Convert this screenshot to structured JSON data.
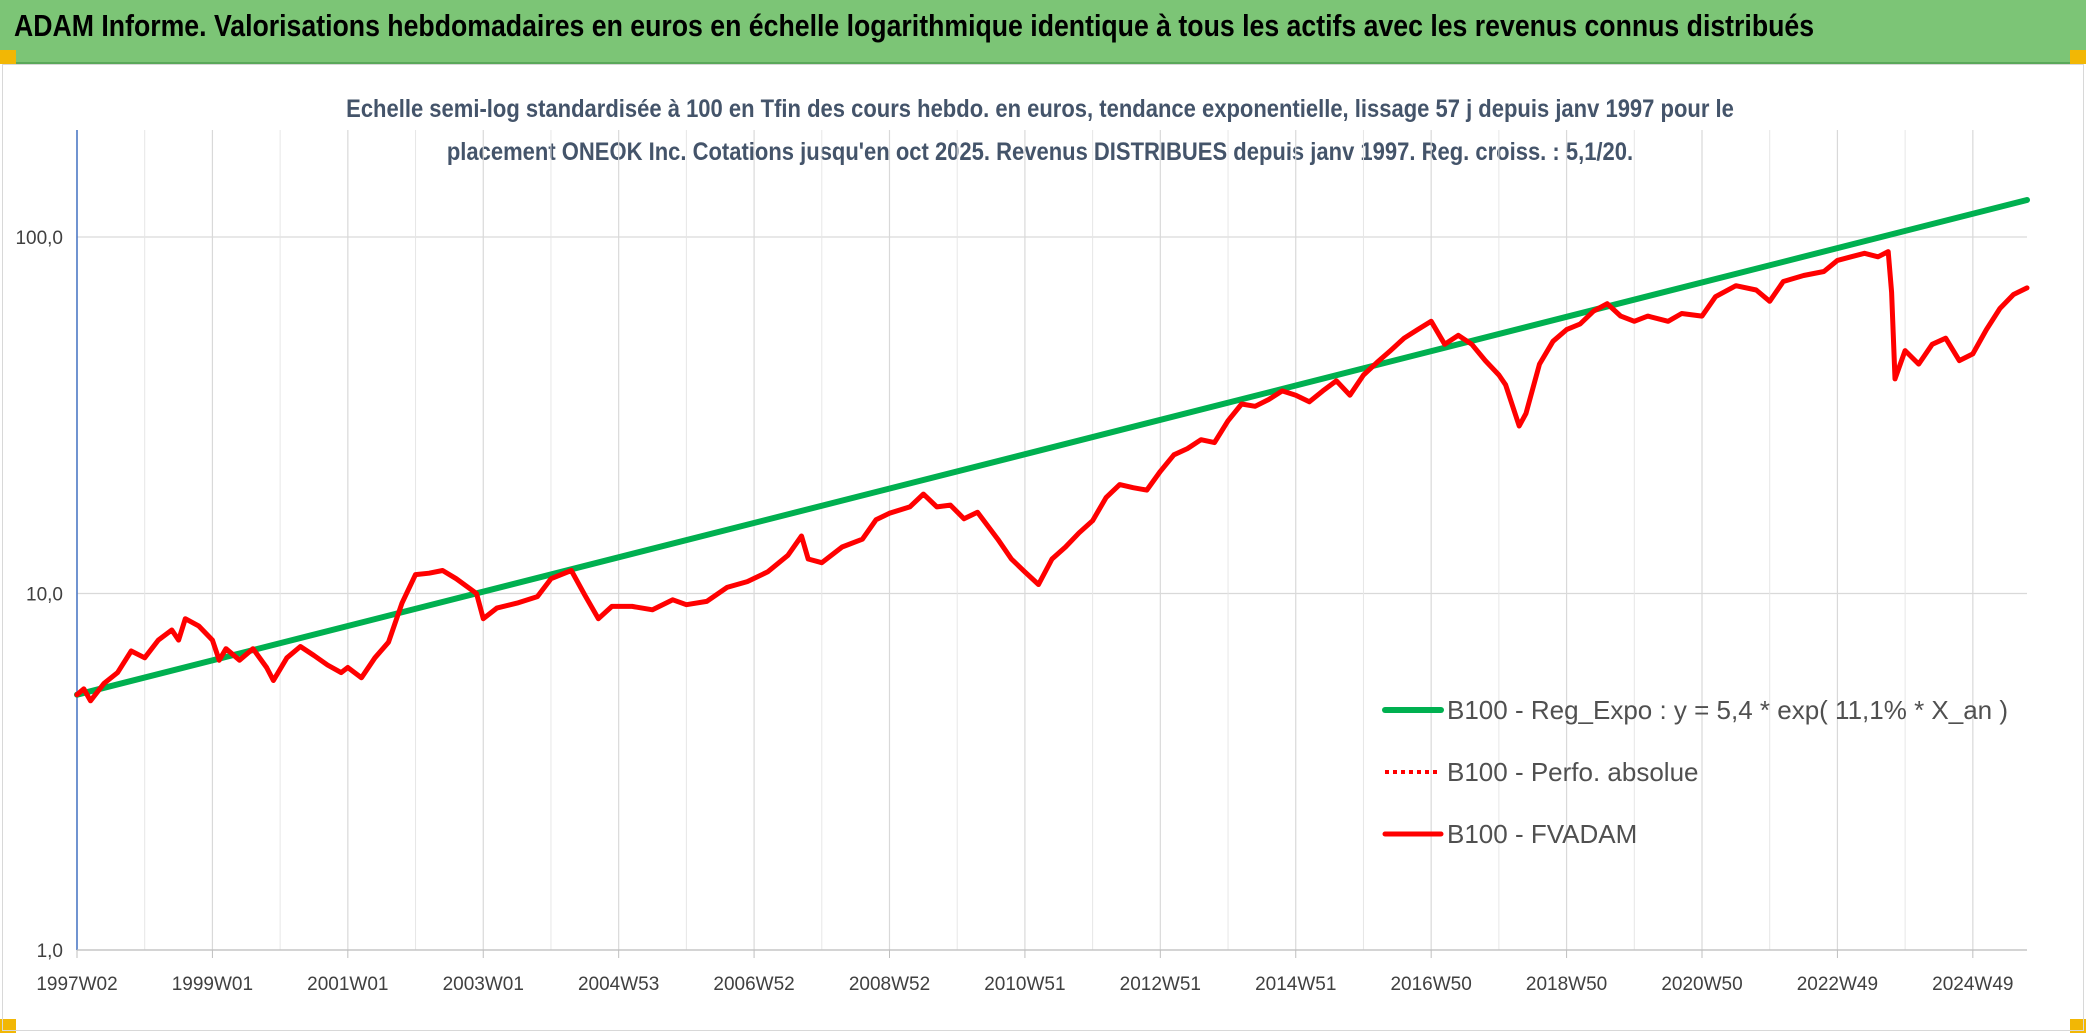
{
  "header": {
    "title": "ADAM Informe. Valorisations hebdomadaires en euros en échelle logarithmique identique à tous les actifs avec les revenus connus distribués"
  },
  "colors": {
    "banner": "#7cc576",
    "accent_corner": "#f2b705",
    "regression_line": "#00b050",
    "fvadam_line": "#ff0000",
    "perfo_line": "#ff0000",
    "subtitle_text": "#44546a"
  },
  "chart_data": {
    "type": "line",
    "title_lines": [
      "Echelle semi-log standardisée à 100 en Tfin des cours hebdo. en euros, tendance exponentielle, lissage 57 j depuis janv 1997 pour le",
      "placement ONEOK Inc. Cotations jusqu'en oct 2025. Revenus DISTRIBUES depuis janv 1997. Reg. croiss. : 5,1/20."
    ],
    "y_scale": "log",
    "ylim": [
      1,
      180
    ],
    "y_ticks": [
      {
        "value": 1,
        "label": "1,0"
      },
      {
        "value": 10,
        "label": "10,0"
      },
      {
        "value": 100,
        "label": "100,0"
      }
    ],
    "xlim": [
      1997.0,
      2025.8
    ],
    "x_ticks": [
      {
        "value": 1997.0,
        "label": "1997W02"
      },
      {
        "value": 1999.0,
        "label": "1999W01"
      },
      {
        "value": 2001.0,
        "label": "2001W01"
      },
      {
        "value": 2003.0,
        "label": "2003W01"
      },
      {
        "value": 2005.0,
        "label": "2004W53"
      },
      {
        "value": 2007.0,
        "label": "2006W52"
      },
      {
        "value": 2009.0,
        "label": "2008W52"
      },
      {
        "value": 2011.0,
        "label": "2010W51"
      },
      {
        "value": 2013.0,
        "label": "2012W51"
      },
      {
        "value": 2015.0,
        "label": "2014W51"
      },
      {
        "value": 2017.0,
        "label": "2016W50"
      },
      {
        "value": 2019.0,
        "label": "2018W50"
      },
      {
        "value": 2021.0,
        "label": "2020W50"
      },
      {
        "value": 2023.0,
        "label": "2022W49"
      },
      {
        "value": 2025.0,
        "label": "2024W49"
      }
    ],
    "grid": true,
    "legend_position": "right-middle",
    "series": [
      {
        "name": "B100 - Reg_Expo : y = 5,4 * exp( 11,1% *  X_an )",
        "style": "solid-thick",
        "color": "#00b050",
        "points": [
          [
            1997.0,
            5.2
          ],
          [
            2025.8,
            127
          ]
        ]
      },
      {
        "name": "B100 - Perfo. absolue",
        "style": "dotted",
        "color": "#ff0000",
        "points": []
      },
      {
        "name": "B100 - FVADAM",
        "style": "solid",
        "color": "#ff0000",
        "points": [
          [
            1997.0,
            5.2
          ],
          [
            1997.1,
            5.4
          ],
          [
            1997.2,
            5.0
          ],
          [
            1997.4,
            5.6
          ],
          [
            1997.6,
            6.0
          ],
          [
            1997.8,
            6.9
          ],
          [
            1998.0,
            6.6
          ],
          [
            1998.2,
            7.4
          ],
          [
            1998.4,
            7.9
          ],
          [
            1998.5,
            7.4
          ],
          [
            1998.6,
            8.5
          ],
          [
            1998.8,
            8.1
          ],
          [
            1999.0,
            7.4
          ],
          [
            1999.1,
            6.5
          ],
          [
            1999.2,
            7.0
          ],
          [
            1999.4,
            6.5
          ],
          [
            1999.6,
            7.0
          ],
          [
            1999.8,
            6.2
          ],
          [
            1999.9,
            5.7
          ],
          [
            2000.1,
            6.6
          ],
          [
            2000.3,
            7.1
          ],
          [
            2000.5,
            6.7
          ],
          [
            2000.7,
            6.3
          ],
          [
            2000.9,
            6.0
          ],
          [
            2001.0,
            6.2
          ],
          [
            2001.2,
            5.8
          ],
          [
            2001.4,
            6.6
          ],
          [
            2001.6,
            7.3
          ],
          [
            2001.8,
            9.4
          ],
          [
            2002.0,
            11.3
          ],
          [
            2002.2,
            11.4
          ],
          [
            2002.4,
            11.6
          ],
          [
            2002.6,
            11.0
          ],
          [
            2002.9,
            10.0
          ],
          [
            2003.0,
            8.5
          ],
          [
            2003.2,
            9.1
          ],
          [
            2003.5,
            9.4
          ],
          [
            2003.8,
            9.8
          ],
          [
            2004.0,
            11.0
          ],
          [
            2004.3,
            11.6
          ],
          [
            2004.5,
            9.9
          ],
          [
            2004.7,
            8.5
          ],
          [
            2004.9,
            9.2
          ],
          [
            2005.2,
            9.2
          ],
          [
            2005.5,
            9.0
          ],
          [
            2005.8,
            9.6
          ],
          [
            2006.0,
            9.3
          ],
          [
            2006.3,
            9.5
          ],
          [
            2006.6,
            10.4
          ],
          [
            2006.9,
            10.8
          ],
          [
            2007.2,
            11.5
          ],
          [
            2007.5,
            12.8
          ],
          [
            2007.7,
            14.5
          ],
          [
            2007.8,
            12.5
          ],
          [
            2008.0,
            12.2
          ],
          [
            2008.3,
            13.5
          ],
          [
            2008.6,
            14.2
          ],
          [
            2008.8,
            16.1
          ],
          [
            2009.0,
            16.8
          ],
          [
            2009.3,
            17.5
          ],
          [
            2009.5,
            19.0
          ],
          [
            2009.7,
            17.5
          ],
          [
            2009.9,
            17.7
          ],
          [
            2010.1,
            16.2
          ],
          [
            2010.3,
            16.9
          ],
          [
            2010.6,
            14.2
          ],
          [
            2010.8,
            12.5
          ],
          [
            2011.0,
            11.5
          ],
          [
            2011.2,
            10.6
          ],
          [
            2011.4,
            12.5
          ],
          [
            2011.6,
            13.5
          ],
          [
            2011.8,
            14.8
          ],
          [
            2012.0,
            16.0
          ],
          [
            2012.2,
            18.6
          ],
          [
            2012.4,
            20.2
          ],
          [
            2012.6,
            19.8
          ],
          [
            2012.8,
            19.5
          ],
          [
            2013.0,
            22.0
          ],
          [
            2013.2,
            24.5
          ],
          [
            2013.4,
            25.5
          ],
          [
            2013.6,
            27.0
          ],
          [
            2013.8,
            26.5
          ],
          [
            2014.0,
            30.5
          ],
          [
            2014.2,
            34.0
          ],
          [
            2014.4,
            33.5
          ],
          [
            2014.6,
            35.0
          ],
          [
            2014.8,
            37.0
          ],
          [
            2015.0,
            36.0
          ],
          [
            2015.2,
            34.5
          ],
          [
            2015.4,
            37.0
          ],
          [
            2015.6,
            39.5
          ],
          [
            2015.8,
            36.0
          ],
          [
            2016.0,
            41.0
          ],
          [
            2016.2,
            44.5
          ],
          [
            2016.4,
            48.0
          ],
          [
            2016.6,
            52.0
          ],
          [
            2016.8,
            55.0
          ],
          [
            2017.0,
            58.0
          ],
          [
            2017.2,
            50.0
          ],
          [
            2017.4,
            53.0
          ],
          [
            2017.6,
            50.0
          ],
          [
            2017.8,
            45.0
          ],
          [
            2018.0,
            41.0
          ],
          [
            2018.1,
            38.5
          ],
          [
            2018.3,
            29.5
          ],
          [
            2018.4,
            32.0
          ],
          [
            2018.6,
            44.0
          ],
          [
            2018.8,
            51.0
          ],
          [
            2019.0,
            55.0
          ],
          [
            2019.2,
            57.0
          ],
          [
            2019.4,
            62.0
          ],
          [
            2019.6,
            65.0
          ],
          [
            2019.8,
            60.0
          ],
          [
            2020.0,
            58.0
          ],
          [
            2020.2,
            60.0
          ],
          [
            2020.5,
            58.0
          ],
          [
            2020.7,
            61.0
          ],
          [
            2021.0,
            60.0
          ],
          [
            2021.2,
            68.0
          ],
          [
            2021.5,
            73.0
          ],
          [
            2021.8,
            71.0
          ],
          [
            2022.0,
            66.0
          ],
          [
            2022.2,
            75.0
          ],
          [
            2022.5,
            78.0
          ],
          [
            2022.8,
            80.0
          ],
          [
            2023.0,
            86.0
          ],
          [
            2023.2,
            88.0
          ],
          [
            2023.4,
            90.0
          ],
          [
            2023.6,
            88.0
          ],
          [
            2023.75,
            91.0
          ],
          [
            2023.8,
            70.0
          ],
          [
            2023.85,
            40.0
          ],
          [
            2024.0,
            48.0
          ],
          [
            2024.2,
            44.0
          ],
          [
            2024.4,
            50.0
          ],
          [
            2024.6,
            52.0
          ],
          [
            2024.8,
            45.0
          ],
          [
            2025.0,
            47.0
          ],
          [
            2025.2,
            55.0
          ],
          [
            2025.4,
            63.0
          ],
          [
            2025.6,
            69.0
          ],
          [
            2025.8,
            72.0
          ]
        ]
      }
    ]
  }
}
